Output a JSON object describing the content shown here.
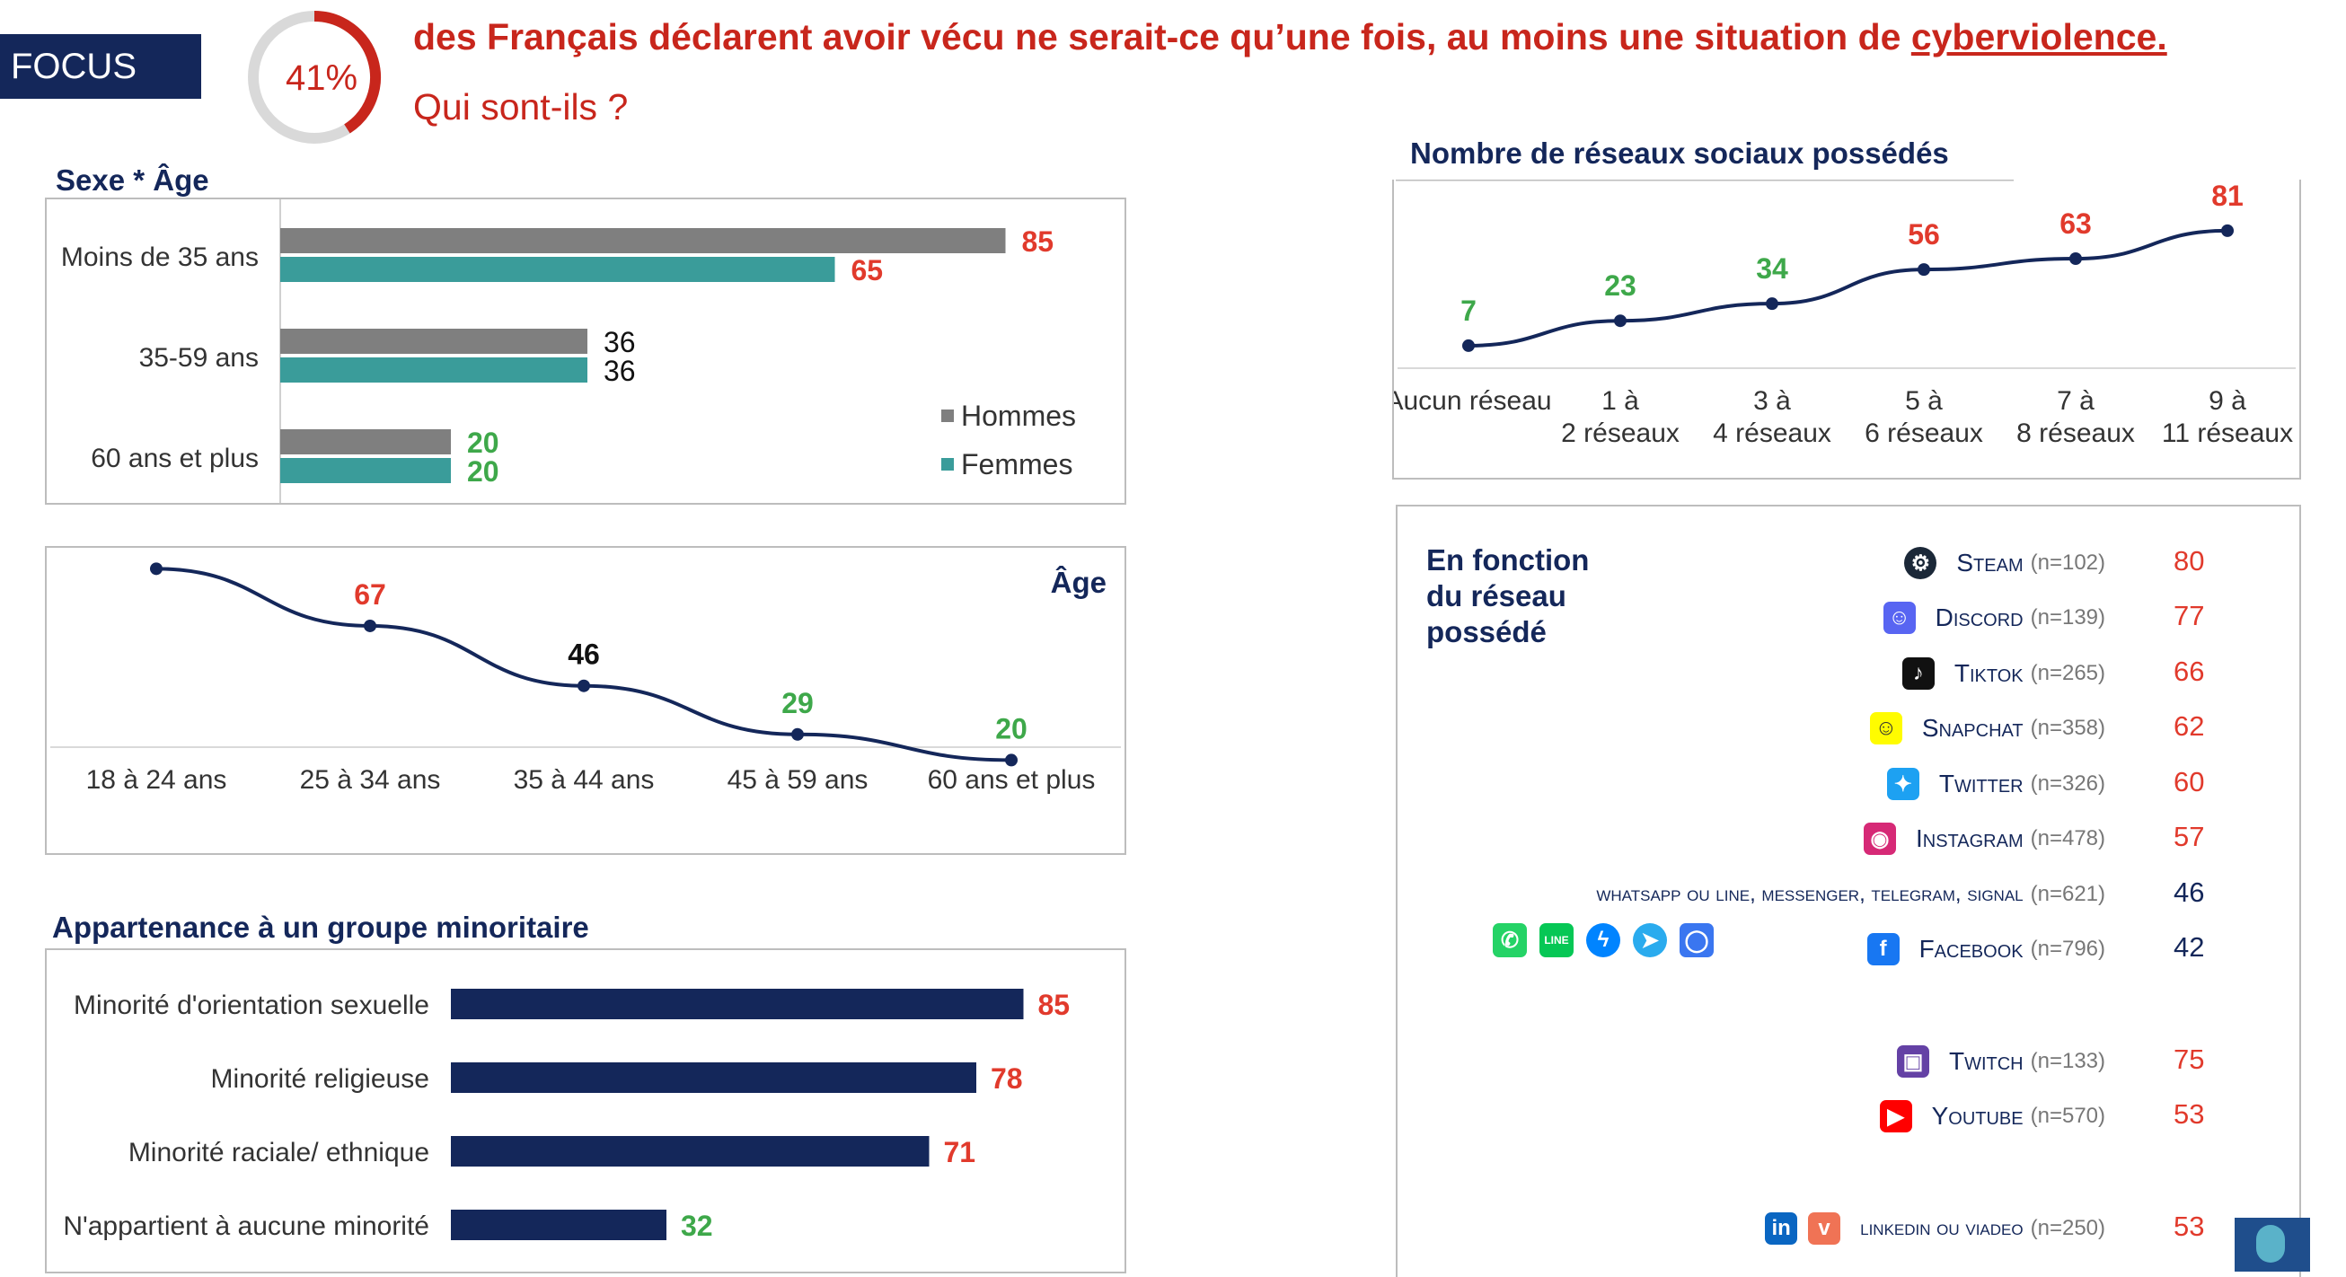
{
  "header": {
    "focus_label": "FOCUS",
    "donut_value": "41%",
    "donut_fraction": 0.41,
    "headline_before": "des Français déclarent avoir vécu ne serait-ce qu’une fois, au moins une situation de ",
    "headline_link": "cyberviolence.",
    "subheadline": "Qui sont-ils ?"
  },
  "colors": {
    "navy": "#14275a",
    "red": "#e13a2c",
    "green": "#3ea84a",
    "grey_bar": "#7f7f7f",
    "teal_bar": "#3a9c9a"
  },
  "sex_age": {
    "title": "Sexe * Âge",
    "legend": [
      {
        "label": "Hommes",
        "color": "#7f7f7f"
      },
      {
        "label": "Femmes",
        "color": "#3a9c9a"
      }
    ]
  },
  "age_line": {
    "title": "Âge"
  },
  "minority": {
    "title": "Appartenance à un groupe minoritaire"
  },
  "networks_count": {
    "title": "Nombre de réseaux sociaux possédés"
  },
  "by_network": {
    "title_lines": [
      "En fonction",
      "du réseau",
      "possédé"
    ],
    "rows": [
      {
        "icon": "steam-icon",
        "name": "Steam",
        "n": "(n=102)",
        "value": "80",
        "color": "red"
      },
      {
        "icon": "discord-icon",
        "name": "Discord",
        "n": "(n=139)",
        "value": "77",
        "color": "red"
      },
      {
        "icon": "tiktok-icon",
        "name": "Tiktok",
        "n": "(n=265)",
        "value": "66",
        "color": "red"
      },
      {
        "icon": "snapchat-icon",
        "name": "Snapchat",
        "n": "(n=358)",
        "value": "62",
        "color": "red"
      },
      {
        "icon": "twitter-icon",
        "name": "Twitter",
        "n": "(n=326)",
        "value": "60",
        "color": "red"
      },
      {
        "icon": "instagram-icon",
        "name": "Instagram",
        "n": "(n=478)",
        "value": "57",
        "color": "red"
      },
      {
        "icon": "",
        "name": "whatsapp ou line, messenger, telegram, signal",
        "n": "(n=621)",
        "value": "46",
        "color": "navy"
      },
      {
        "icon": "facebook-icon",
        "name": "Facebook",
        "n": "(n=796)",
        "value": "42",
        "color": "navy"
      },
      {
        "icon": "twitch-icon",
        "name": "Twitch",
        "n": "(n=133)",
        "value": "75",
        "color": "red"
      },
      {
        "icon": "youtube-icon",
        "name": "Youtube",
        "n": "(n=570)",
        "value": "53",
        "color": "red"
      },
      {
        "icon": "linkedin-icon",
        "name": "linkedin ou viadeo",
        "n": "(n=250)",
        "value": "53",
        "color": "red"
      }
    ]
  },
  "chart_data": [
    {
      "type": "bar",
      "orientation": "horizontal",
      "title": "Sexe * Âge",
      "categories": [
        "Moins de 35 ans",
        "35-59 ans",
        "60 ans et plus"
      ],
      "series": [
        {
          "name": "Hommes",
          "values": [
            85,
            36,
            20
          ]
        },
        {
          "name": "Femmes",
          "values": [
            65,
            36,
            20
          ]
        }
      ],
      "label_colors": [
        [
          "red",
          "red"
        ],
        [
          "black",
          "black"
        ],
        [
          "green",
          "green"
        ]
      ],
      "xlim": [
        0,
        100
      ],
      "legend": "bottom-right",
      "grid": false
    },
    {
      "type": "line",
      "title": "Âge",
      "x": [
        "18 à 24 ans",
        "25 à 34 ans",
        "35 à 44 ans",
        "45 à 59 ans",
        "60 ans et plus"
      ],
      "values": [
        87,
        67,
        46,
        29,
        20
      ],
      "label_colors": [
        "red",
        "red",
        "black",
        "green",
        "green"
      ],
      "ylim": [
        0,
        100
      ],
      "grid": false
    },
    {
      "type": "bar",
      "orientation": "horizontal",
      "title": "Appartenance à un groupe minoritaire",
      "categories": [
        "Minorité d'orientation sexuelle",
        "Minorité religieuse",
        "Minorité raciale/ ethnique",
        "N'appartient à aucune minorité"
      ],
      "values": [
        85,
        78,
        71,
        32
      ],
      "label_colors": [
        "red",
        "red",
        "red",
        "green"
      ],
      "xlim": [
        0,
        100
      ],
      "grid": false
    },
    {
      "type": "line",
      "title": "Nombre de réseaux sociaux possédés",
      "x": [
        "Aucun réseau",
        "1 à 2 réseaux",
        "3 à 4 réseaux",
        "5 à 6 réseaux",
        "7 à 8 réseaux",
        "9 à 11 réseaux"
      ],
      "values": [
        7,
        23,
        34,
        56,
        63,
        81
      ],
      "label_colors": [
        "green",
        "green",
        "green",
        "red",
        "red",
        "red"
      ],
      "ylim": [
        0,
        100
      ],
      "grid": false
    }
  ]
}
